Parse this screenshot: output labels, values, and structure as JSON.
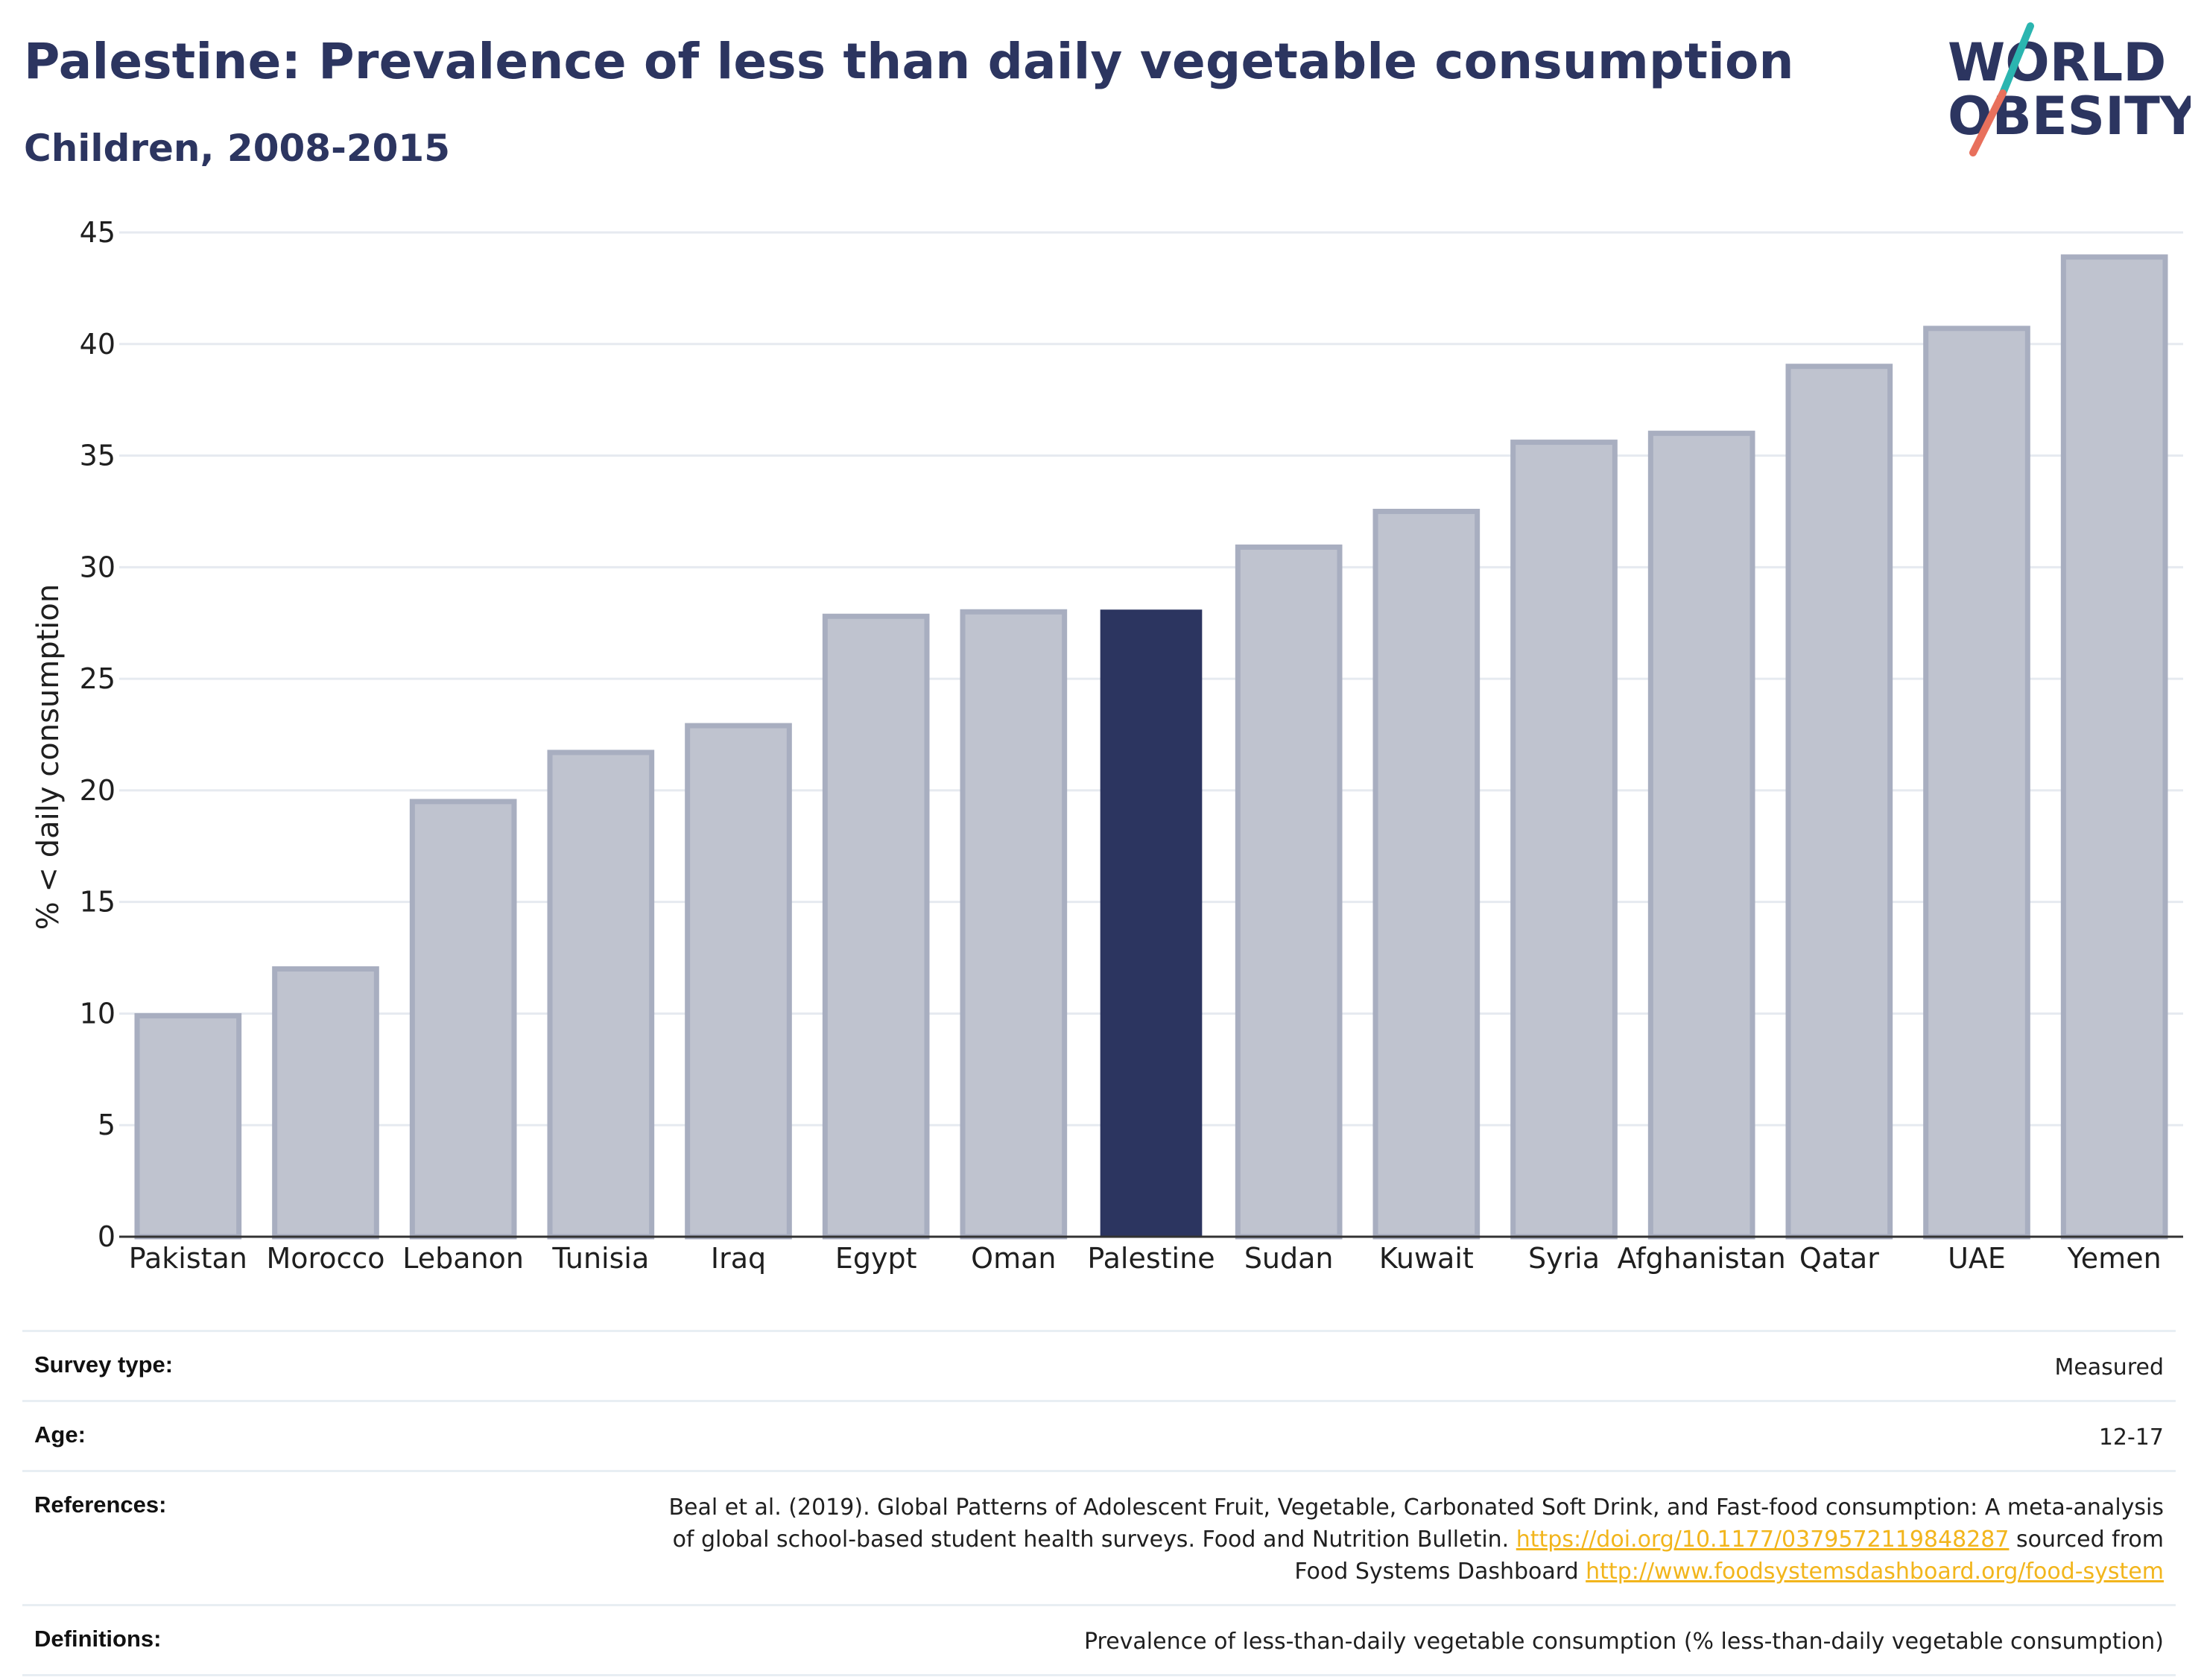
{
  "header": {
    "title": "Palestine: Prevalence of less than daily vegetable consumption",
    "subtitle": "Children, 2008-2015"
  },
  "logo": {
    "line1": "WORLD",
    "line2": "OBESITY",
    "text_color": "#2c3560",
    "slash_teal": "#2bb5b0",
    "slash_coral": "#e8705c"
  },
  "chart_data": {
    "type": "bar",
    "title": "Palestine: Prevalence of less than daily vegetable consumption",
    "subtitle": "Children, 2008-2015",
    "xlabel": "",
    "ylabel": "% < daily consumption",
    "ylim": [
      0,
      45
    ],
    "yticks": [
      0,
      5,
      10,
      15,
      20,
      25,
      30,
      35,
      40,
      45
    ],
    "grid": true,
    "categories": [
      "Pakistan",
      "Morocco",
      "Lebanon",
      "Tunisia",
      "Iraq",
      "Egypt",
      "Oman",
      "Palestine",
      "Sudan",
      "Kuwait",
      "Syria",
      "Afghanistan",
      "Qatar",
      "UAE",
      "Yemen"
    ],
    "values": [
      9.9,
      12.0,
      19.5,
      21.7,
      22.9,
      27.8,
      28.0,
      28.1,
      30.9,
      32.5,
      35.6,
      36.0,
      39.0,
      40.7,
      43.9
    ],
    "highlight": "Palestine",
    "colors": {
      "highlight": "#2c3560",
      "other_fill": "#bfc3cf",
      "other_border": "#a8aec0"
    }
  },
  "info": [
    {
      "label": "Survey type:",
      "value": "Measured"
    },
    {
      "label": "Age:",
      "value": "12-17"
    },
    {
      "label": "References:",
      "lines": [
        {
          "text": "Beal et al. (2019). Global Patterns of Adolescent Fruit, Vegetable, Carbonated Soft Drink, and Fast-food consumption: A meta-analysis"
        },
        {
          "text": "of global school-based student health surveys. Food and Nutrition Bulletin. ",
          "link": "https://doi.org/10.1177/0379572119848287",
          "after": " sourced from"
        },
        {
          "text": "Food Systems Dashboard ",
          "link": "http://www.foodsystemsdashboard.org/food-system"
        }
      ]
    },
    {
      "label": "Definitions:",
      "value": "Prevalence of less-than-daily vegetable consumption (% less-than-daily vegetable consumption)"
    }
  ]
}
